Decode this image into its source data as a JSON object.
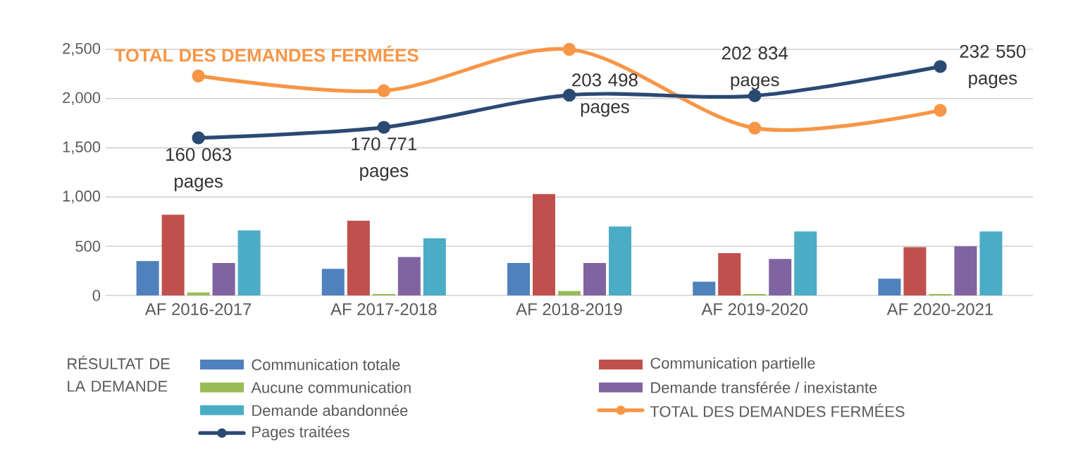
{
  "chart_data": {
    "type": "bar",
    "categories": [
      "AF 2016-2017",
      "AF 2017-2018",
      "AF 2018-2019",
      "AF 2019-2020",
      "AF 2020-2021"
    ],
    "ylim": [
      0,
      2500
    ],
    "yticks": [
      0,
      500,
      {
        "value": 1000,
        "label": "1,000"
      },
      {
        "value": 1500,
        "label": "1,500"
      },
      {
        "value": 2000,
        "label": "2,000"
      },
      {
        "value": 2500,
        "label": "2,500"
      }
    ],
    "y2lim": [
      0,
      250000
    ],
    "grid": "y",
    "legend": "bottom",
    "legend_title": "RÉSULTAT DE LA DEMANDE",
    "annotations": [
      "TOTAL DES DEMANDES FERMÉES"
    ],
    "series": [
      {
        "name": "Communication totale",
        "color": "#4f81bd",
        "values": [
          350,
          270,
          330,
          140,
          170
        ]
      },
      {
        "name": "Communication partielle",
        "color": "#c0504d",
        "values": [
          820,
          760,
          1030,
          430,
          490
        ]
      },
      {
        "name": "Aucune communication",
        "color": "#9bbb59",
        "values": [
          30,
          15,
          45,
          15,
          15
        ]
      },
      {
        "name": "Demande transférée / inexistante",
        "color": "#8064a2",
        "values": [
          330,
          390,
          330,
          370,
          500
        ]
      },
      {
        "name": "Demande abandonnée",
        "color": "#4bacc6",
        "values": [
          660,
          580,
          700,
          650,
          650
        ]
      },
      {
        "name": "TOTAL DES DEMANDES FERMÉES",
        "color": "#f79646",
        "type": "line",
        "marker": "circle",
        "values": [
          2230,
          2080,
          2500,
          1700,
          1880
        ]
      },
      {
        "name": "Pages traitées",
        "color": "#2a4a74",
        "type": "line",
        "marker": "circle",
        "axis": "y2",
        "values": [
          160063,
          170771,
          203498,
          202834,
          232550
        ],
        "value_labels": [
          "160 063 pages",
          "170 771 pages",
          "203 498 pages",
          "202 834 pages",
          "232 550 pages"
        ]
      }
    ]
  }
}
